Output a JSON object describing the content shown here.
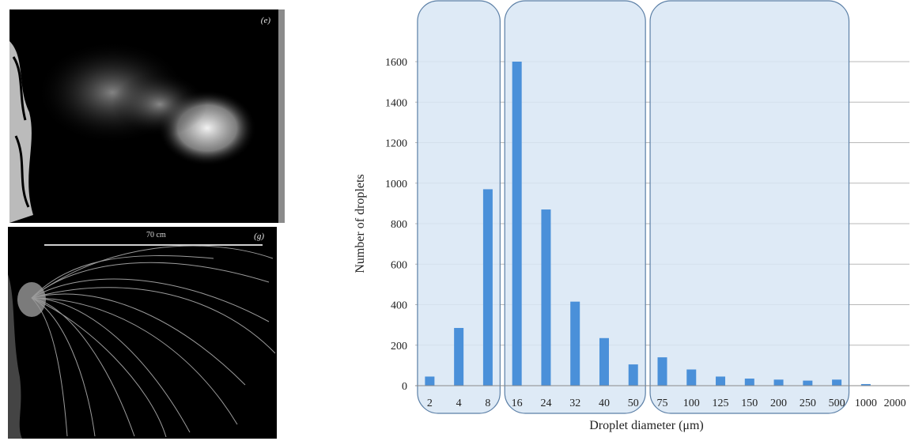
{
  "figure": {
    "panel_e_label": "(e)",
    "panel_g_label": "(g)",
    "scale_label": "70 cm"
  },
  "chart_data": {
    "type": "bar",
    "categories": [
      "2",
      "4",
      "8",
      "16",
      "24",
      "32",
      "40",
      "50",
      "75",
      "100",
      "125",
      "150",
      "200",
      "250",
      "500",
      "1000",
      "2000"
    ],
    "values": [
      45,
      285,
      970,
      1600,
      870,
      415,
      235,
      105,
      140,
      80,
      45,
      35,
      30,
      25,
      30,
      8,
      0
    ],
    "xlabel": "Droplet diameter (μm)",
    "ylabel": "Number of droplets",
    "ylim": [
      0,
      1600
    ],
    "yticks": [
      0,
      200,
      400,
      600,
      800,
      1000,
      1200,
      1400,
      1600
    ],
    "grid": true,
    "bar_color": "#4a90d9",
    "highlight_fill": "#d8e6f5",
    "highlight_stroke": "#5b7fa6",
    "highlight_groups": [
      {
        "from": "2",
        "to": "8"
      },
      {
        "from": "16",
        "to": "50"
      },
      {
        "from": "75",
        "to": "500"
      }
    ]
  }
}
